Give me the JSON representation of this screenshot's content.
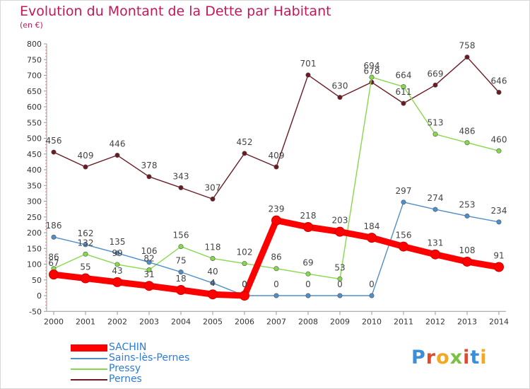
{
  "title": "Evolution du Montant de la Dette par Habitant",
  "unit": "(en €)",
  "logo": "Proxiti",
  "chart_data": {
    "type": "line",
    "title": "Evolution du Montant de la Dette par Habitant",
    "ylabel": "(en €)",
    "xlabel": "",
    "x": [
      "2000",
      "2001",
      "2002",
      "2003",
      "2004",
      "2005",
      "2006",
      "2007",
      "2008",
      "2009",
      "2010",
      "2011",
      "2012",
      "2013",
      "2014"
    ],
    "ylim": [
      -50,
      800
    ],
    "yticks": [
      -50,
      0,
      50,
      100,
      150,
      200,
      250,
      300,
      350,
      400,
      450,
      500,
      550,
      600,
      650,
      700,
      750,
      800
    ],
    "grid": false,
    "legend_position": "bottom-left",
    "series": [
      {
        "name": "SACHIN",
        "color": "#ff0000",
        "values": [
          67,
          55,
          43,
          31,
          18,
          4,
          0,
          239,
          218,
          203,
          184,
          156,
          131,
          108,
          91
        ],
        "labels": [
          "67",
          "55",
          "43",
          "31",
          "18",
          "4",
          "0",
          "239",
          "218",
          "203",
          "184",
          "156",
          "131",
          "108",
          "91"
        ]
      },
      {
        "name": "Sains-lès-Pernes",
        "color": "#4e8fc9",
        "values": [
          186,
          162,
          135,
          106,
          75,
          40,
          0,
          0,
          0,
          0,
          0,
          297,
          274,
          253,
          234
        ],
        "labels": [
          "186",
          "162",
          "135",
          "106",
          "75",
          "40",
          "0",
          "0",
          "0",
          "0",
          "0",
          "297",
          "274",
          "253",
          "234"
        ]
      },
      {
        "name": "Pressy",
        "color": "#86d94a",
        "values": [
          86,
          132,
          99,
          82,
          156,
          118,
          102,
          86,
          69,
          53,
          694,
          664,
          513,
          486,
          460
        ],
        "labels": [
          "86",
          "132",
          "99",
          "82",
          "156",
          "118",
          "102",
          "86",
          "69",
          "53",
          "694",
          "664",
          "513",
          "486",
          "460"
        ]
      },
      {
        "name": "Pernes",
        "color": "#6b1a22",
        "values": [
          456,
          409,
          446,
          378,
          343,
          307,
          452,
          409,
          701,
          630,
          678,
          611,
          669,
          758,
          646
        ],
        "labels": [
          "456",
          "409",
          "446",
          "378",
          "343",
          "307",
          "452",
          "409",
          "701",
          "630",
          "678",
          "611",
          "669",
          "758",
          "646"
        ]
      }
    ]
  }
}
